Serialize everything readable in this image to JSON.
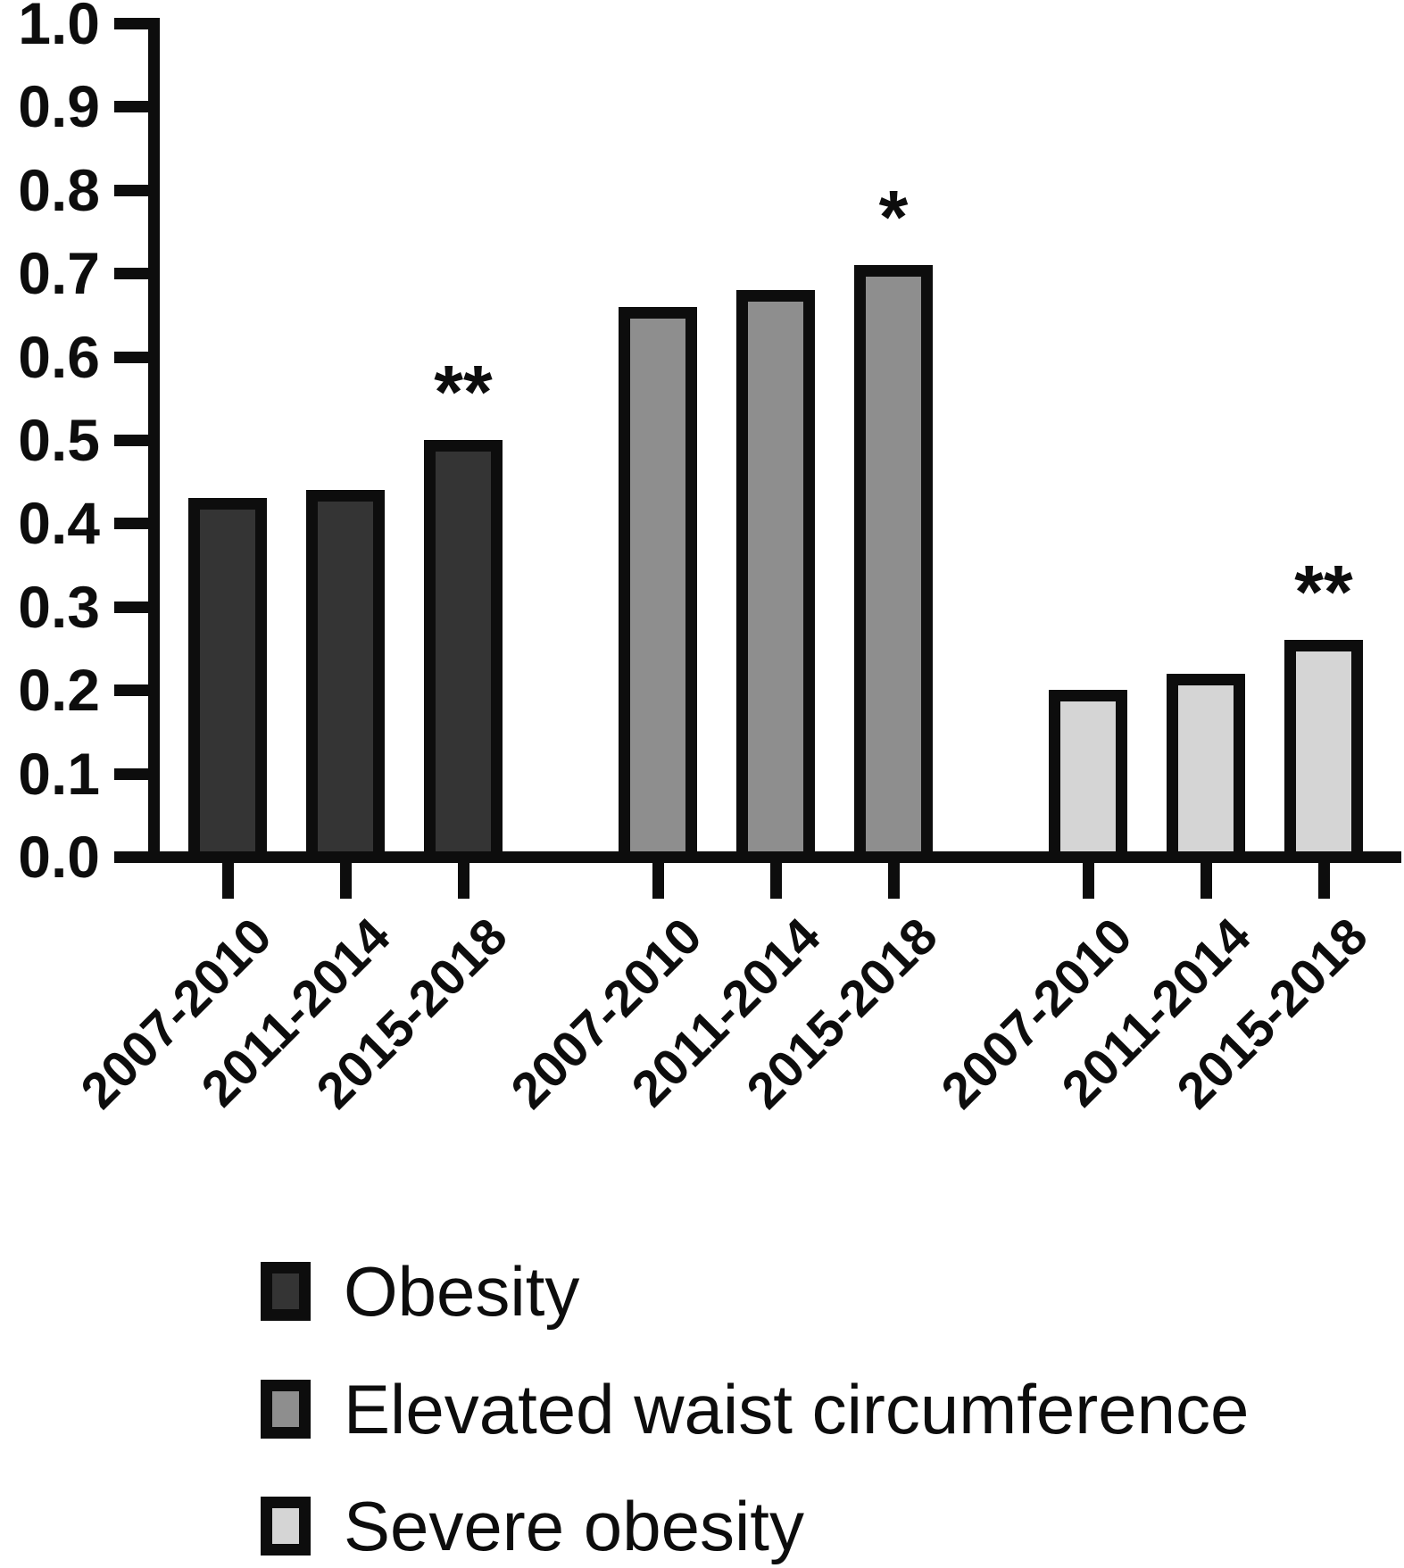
{
  "chart_data": {
    "type": "bar",
    "title": "",
    "xlabel": "",
    "ylabel": "",
    "ylim": [
      0.0,
      1.0
    ],
    "y_ticks": [
      "0.0",
      "0.1",
      "0.2",
      "0.3",
      "0.4",
      "0.5",
      "0.6",
      "0.7",
      "0.8",
      "0.9",
      "1.0"
    ],
    "grid": false,
    "legend_position": "bottom-left",
    "categories": [
      "2007-2010",
      "2011-2014",
      "2015-2018"
    ],
    "series": [
      {
        "name": "Obesity",
        "color": "#343434",
        "values": [
          0.43,
          0.44,
          0.5
        ],
        "significance": [
          "",
          "",
          "**"
        ]
      },
      {
        "name": "Elevated waist circumference",
        "color": "#8e8e8e",
        "values": [
          0.66,
          0.68,
          0.71
        ],
        "significance": [
          "",
          "",
          "*"
        ]
      },
      {
        "name": "Severe obesity",
        "color": "#d5d5d5",
        "values": [
          0.2,
          0.22,
          0.26
        ],
        "significance": [
          "",
          "",
          "**"
        ]
      }
    ],
    "bar_outline_color": "#0d0d0d",
    "axis_color": "#0d0d0d",
    "text_color": "#0d0d0d",
    "background": "#ffffff"
  }
}
